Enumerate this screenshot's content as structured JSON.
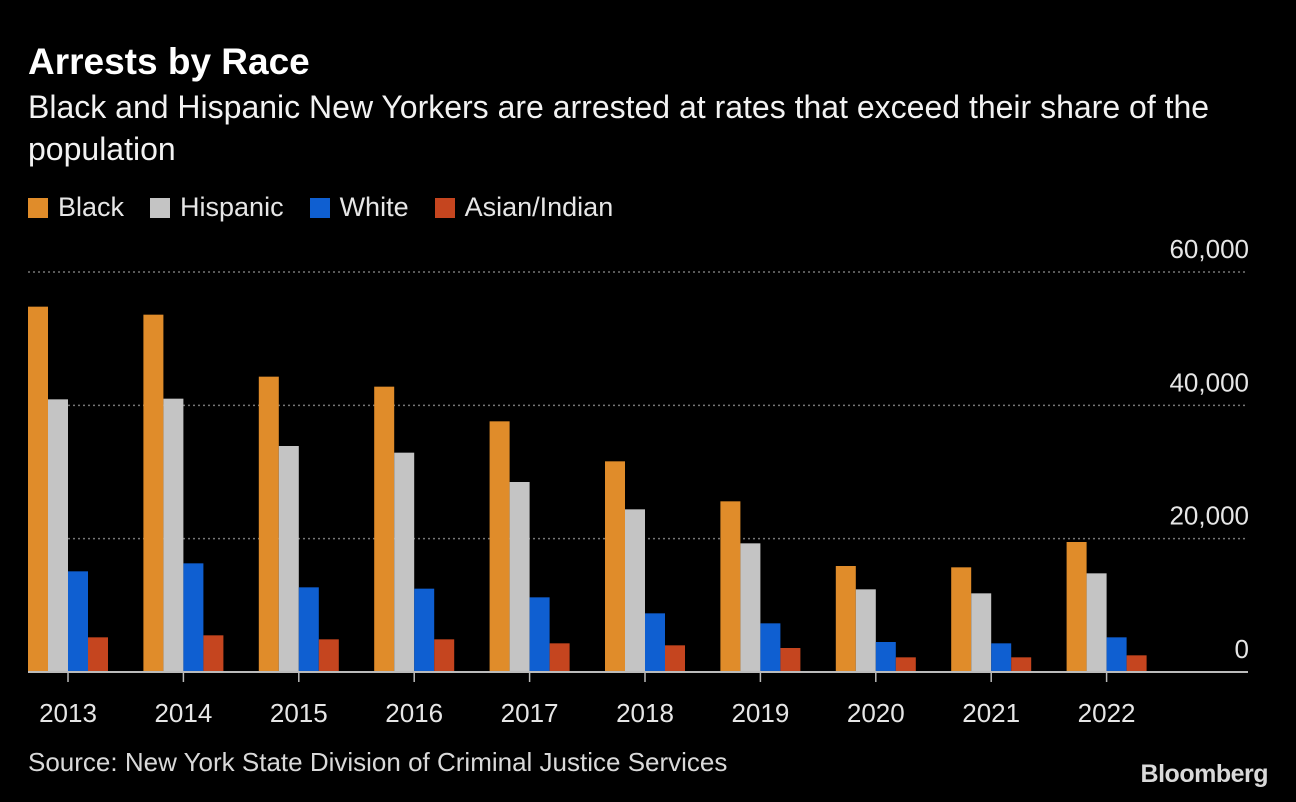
{
  "brand": "Bloomberg",
  "source": "Source: New York State Division of Criminal Justice Services",
  "colors": {
    "background": "#000000",
    "grid": "#777777",
    "axis": "#bbbbbb",
    "tick_text": "#e6e6e6"
  },
  "chart_data": {
    "type": "bar",
    "title": "Arrests by Race",
    "subtitle": "Black and Hispanic New Yorkers are arrested at rates that exceed their share of the population",
    "categories": [
      "2013",
      "2014",
      "2015",
      "2016",
      "2017",
      "2018",
      "2019",
      "2020",
      "2021",
      "2022"
    ],
    "series": [
      {
        "name": "Black",
        "color": "#e08c2a",
        "values": [
          54800,
          53600,
          44300,
          42800,
          37600,
          31600,
          25600,
          15900,
          15700,
          19500
        ]
      },
      {
        "name": "Hispanic",
        "color": "#c4c4c4",
        "values": [
          40900,
          41000,
          33900,
          32900,
          28500,
          24400,
          19300,
          12400,
          11800,
          14800
        ]
      },
      {
        "name": "White",
        "color": "#0f5fd1",
        "values": [
          15100,
          16300,
          12700,
          12500,
          11200,
          8800,
          7300,
          4500,
          4300,
          5200
        ]
      },
      {
        "name": "Asian/Indian",
        "color": "#c5451f",
        "values": [
          5200,
          5500,
          4900,
          4900,
          4300,
          4000,
          3600,
          2200,
          2200,
          2500
        ]
      }
    ],
    "y_ticks": [
      {
        "value": 0,
        "label": "0"
      },
      {
        "value": 20000,
        "label": "20,000"
      },
      {
        "value": 40000,
        "label": "40,000"
      },
      {
        "value": 60000,
        "label": "60,000"
      }
    ],
    "ylim": [
      0,
      60000
    ],
    "xlabel": "",
    "ylabel": "",
    "grid": true,
    "legend_position": "top-left"
  }
}
